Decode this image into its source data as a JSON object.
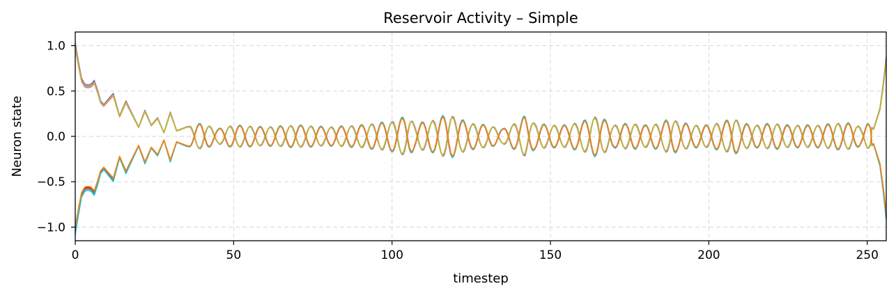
{
  "chart_data": {
    "type": "line",
    "title": "Reservoir Activity – Simple",
    "xlabel": "timestep",
    "ylabel": "Neuron state",
    "xlim": [
      0,
      256
    ],
    "ylim": [
      -1.15,
      1.15
    ],
    "xticks": [
      0,
      50,
      100,
      150,
      200,
      250
    ],
    "yticks": [
      1.0,
      0.5,
      0.0,
      -0.5,
      -1.0
    ],
    "ytick_labels": [
      "1.0",
      "0.5",
      "0.0",
      "−0.5",
      "−1.0"
    ],
    "grid": true,
    "legend": "none",
    "envelope_nodes": {
      "t": [
        0,
        1,
        2,
        3,
        4,
        5,
        6,
        7,
        8,
        9,
        10,
        12,
        14,
        16,
        18,
        20,
        22,
        24,
        26,
        28,
        30,
        32,
        35,
        40,
        45,
        50,
        60,
        70,
        80,
        90,
        100,
        105,
        107,
        112,
        115,
        118,
        120,
        125,
        130,
        135,
        140,
        142,
        145,
        150,
        155,
        160,
        165,
        170,
        175,
        180,
        185,
        188,
        190,
        195,
        200,
        205,
        208,
        210,
        215,
        220,
        225,
        230,
        235,
        240,
        245,
        248,
        250,
        252,
        254,
        255,
        256
      ],
      "amplitude": [
        1.0,
        0.8,
        0.62,
        0.56,
        0.55,
        0.56,
        0.6,
        0.5,
        0.38,
        0.34,
        0.38,
        0.46,
        0.22,
        0.38,
        0.24,
        0.1,
        0.28,
        0.12,
        0.2,
        0.04,
        0.26,
        0.06,
        0.1,
        0.14,
        0.08,
        0.12,
        0.1,
        0.12,
        0.1,
        0.12,
        0.16,
        0.22,
        0.14,
        0.16,
        0.2,
        0.24,
        0.2,
        0.14,
        0.12,
        0.08,
        0.16,
        0.22,
        0.14,
        0.12,
        0.12,
        0.16,
        0.22,
        0.12,
        0.14,
        0.12,
        0.14,
        0.2,
        0.16,
        0.12,
        0.12,
        0.16,
        0.2,
        0.14,
        0.12,
        0.14,
        0.12,
        0.12,
        0.12,
        0.14,
        0.14,
        0.1,
        0.14,
        0.08,
        0.3,
        0.55,
        0.85
      ]
    },
    "series": [
      {
        "sign": 1,
        "color": "#1f77b4",
        "phase": 0.0,
        "scale": 1.0
      },
      {
        "sign": -1,
        "color": "#ff7f0e",
        "phase": 0.0,
        "scale": 1.0
      },
      {
        "sign": 1,
        "color": "#2ca02c",
        "phase": 0.05,
        "scale": 0.98
      },
      {
        "sign": -1,
        "color": "#d62728",
        "phase": 0.05,
        "scale": 1.02
      },
      {
        "sign": 1,
        "color": "#9467bd",
        "phase": -0.05,
        "scale": 1.03
      },
      {
        "sign": -1,
        "color": "#8c564b",
        "phase": -0.05,
        "scale": 1.04
      },
      {
        "sign": 1,
        "color": "#e377c2",
        "phase": 0.08,
        "scale": 0.97
      },
      {
        "sign": -1,
        "color": "#7f7f7f",
        "phase": 0.08,
        "scale": 1.05
      },
      {
        "sign": 1,
        "color": "#bcbd22",
        "phase": 0.02,
        "scale": 0.99
      },
      {
        "sign": -1,
        "color": "#17becf",
        "phase": 0.02,
        "scale": 1.08
      },
      {
        "sign": -1,
        "color": "#ff7f0e",
        "phase": 0.01,
        "scale": 1.0
      }
    ]
  }
}
